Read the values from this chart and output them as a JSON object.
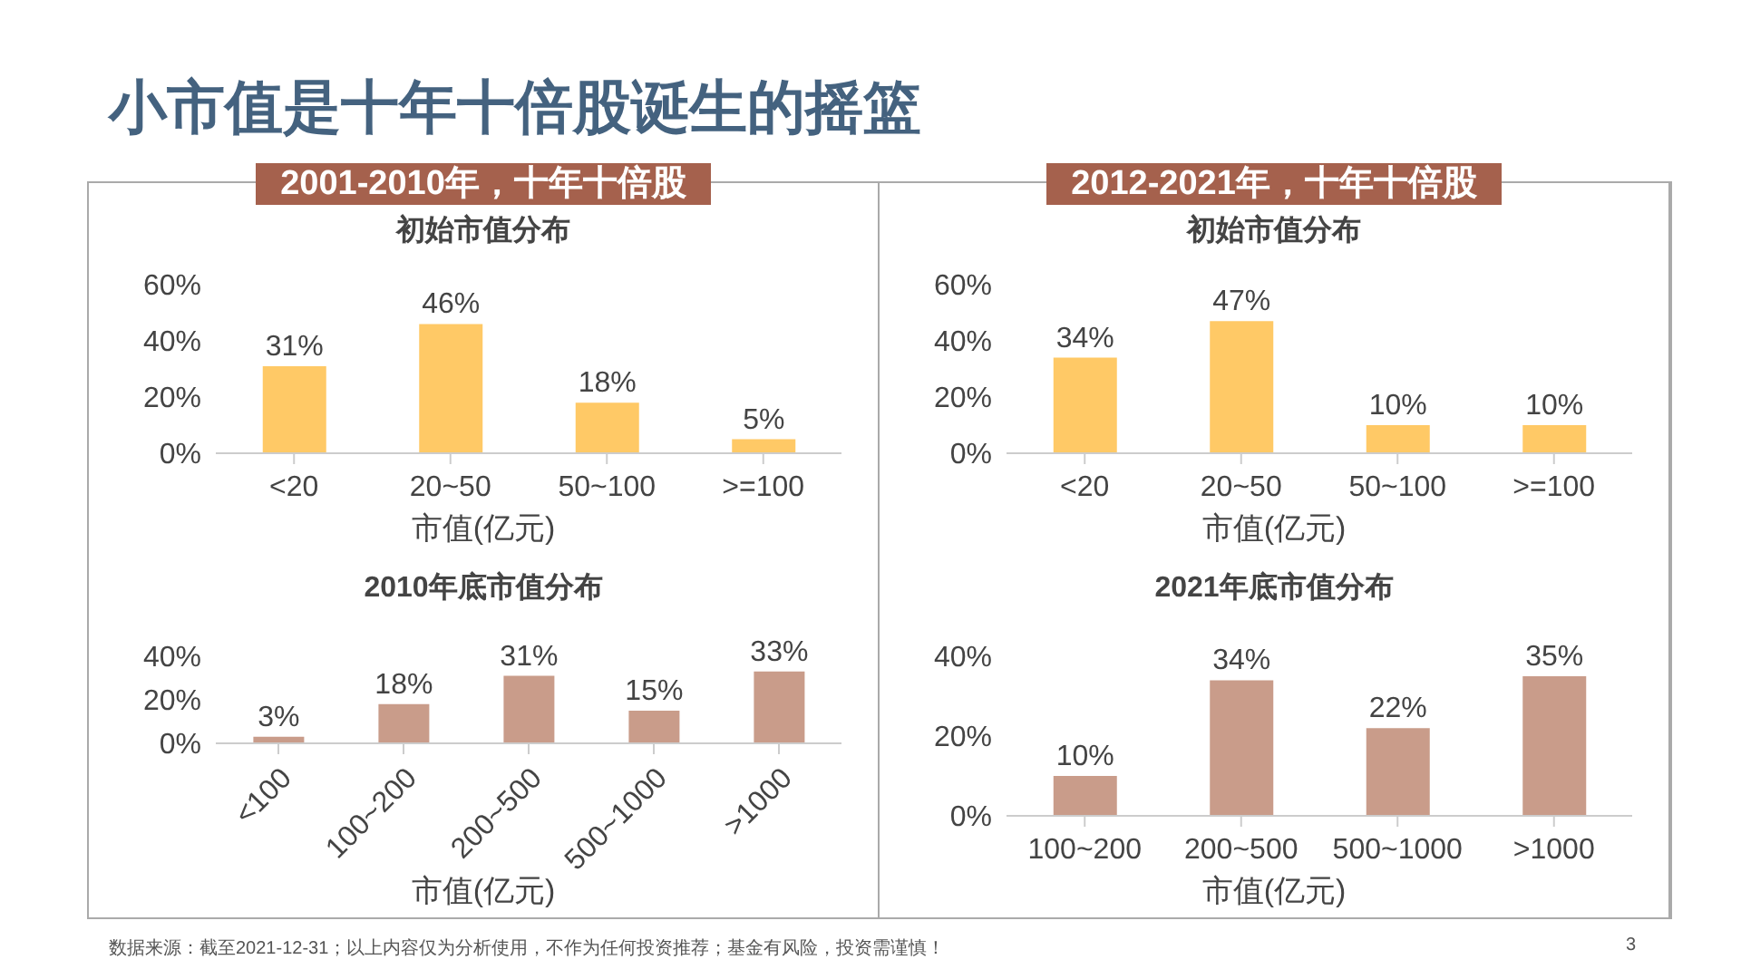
{
  "chart_data": [
    {
      "type": "other",
      "title": "小市值是十年十倍股诞生的摇篮",
      "annotations": [
        "数据来源：截至2021-12-31；以上内容仅为分析使用，不作为任何投资推荐；基金有风险，投资需谨慎！",
        "3"
      ]
    },
    {
      "type": "bar",
      "subtitle": "2001-2010年，十年十倍股",
      "title": "初始市值分布",
      "xlabel": "市值(亿元)",
      "categories": [
        "<20",
        "20~50",
        "50~100",
        ">=100"
      ],
      "values": [
        31,
        46,
        18,
        5
      ],
      "value_labels": [
        "31%",
        "46%",
        "18%",
        "5%"
      ],
      "color": "#ffc966",
      "ylim": [
        0,
        60
      ],
      "yticks": [
        {
          "value": 0,
          "label": "0%"
        },
        {
          "value": 20,
          "label": "20%"
        },
        {
          "value": 40,
          "label": "40%"
        },
        {
          "value": 60,
          "label": "60%"
        }
      ]
    },
    {
      "type": "bar",
      "subtitle": "2012-2021年，十年十倍股",
      "title": "初始市值分布",
      "xlabel": "市值(亿元)",
      "categories": [
        "<20",
        "20~50",
        "50~100",
        ">=100"
      ],
      "values": [
        34,
        47,
        10,
        10
      ],
      "value_labels": [
        "34%",
        "47%",
        "10%",
        "10%"
      ],
      "color": "#ffc966",
      "ylim": [
        0,
        60
      ],
      "yticks": [
        {
          "value": 0,
          "label": "0%"
        },
        {
          "value": 20,
          "label": "20%"
        },
        {
          "value": 40,
          "label": "40%"
        },
        {
          "value": 60,
          "label": "60%"
        }
      ]
    },
    {
      "type": "bar",
      "title": "2010年底市值分布",
      "xlabel": "市值(亿元)",
      "categories": [
        "<100",
        "100~200",
        "200~500",
        "500~1000",
        ">1000"
      ],
      "values": [
        3,
        18,
        31,
        15,
        33
      ],
      "value_labels": [
        "3%",
        "18%",
        "31%",
        "15%",
        "33%"
      ],
      "color": "#c99c8a",
      "ylim": [
        0,
        40
      ],
      "yticks": [
        {
          "value": 0,
          "label": "0%"
        },
        {
          "value": 20,
          "label": "20%"
        },
        {
          "value": 40,
          "label": "40%"
        }
      ]
    },
    {
      "type": "bar",
      "title": "2021年底市值分布",
      "xlabel": "市值(亿元)",
      "categories": [
        "100~200",
        "200~500",
        "500~1000",
        ">1000"
      ],
      "values": [
        10,
        34,
        22,
        35
      ],
      "value_labels": [
        "10%",
        "34%",
        "22%",
        "35%"
      ],
      "color": "#c99c8a",
      "ylim": [
        0,
        40
      ],
      "yticks": [
        {
          "value": 0,
          "label": "0%"
        },
        {
          "value": 20,
          "label": "20%"
        },
        {
          "value": 40,
          "label": "40%"
        }
      ]
    }
  ]
}
